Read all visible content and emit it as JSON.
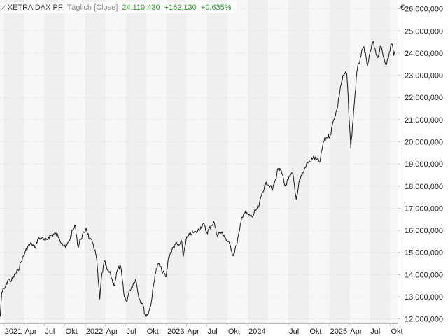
{
  "header": {
    "icon": "line-chart-icon",
    "ticker": "XETRA DAX PF",
    "interval": "Täglich [Close]",
    "last": "24.110,430",
    "change": "+152,130",
    "change_pct": "+0,635%"
  },
  "colors": {
    "line": "#1a1a1a",
    "band_dark": "#efefef",
    "band_light": "#f7f7f7",
    "grid": "#dcdcdc",
    "axis": "#bdbdbd",
    "positive": "#2c9a2c"
  },
  "chart_data": {
    "type": "line",
    "currency_label": "€",
    "ylim": [
      11800000,
      26400000
    ],
    "xlim": [
      "2020-12-14",
      "2025-11-03"
    ],
    "grid": true,
    "y_ticks": [
      {
        "value": 12000000,
        "label": "12.000,000"
      },
      {
        "value": 13000000,
        "label": "13.000,000"
      },
      {
        "value": 14000000,
        "label": "14.000,000"
      },
      {
        "value": 15000000,
        "label": "15.000,000"
      },
      {
        "value": 16000000,
        "label": "16.000,000"
      },
      {
        "value": 17000000,
        "label": "17.000,000"
      },
      {
        "value": 18000000,
        "label": "18.000,000"
      },
      {
        "value": 19000000,
        "label": "19.000,000"
      },
      {
        "value": 20000000,
        "label": "20.000,000"
      },
      {
        "value": 21000000,
        "label": "21.000,000"
      },
      {
        "value": 22000000,
        "label": "22.000,000"
      },
      {
        "value": 23000000,
        "label": "23.000,000"
      },
      {
        "value": 24000000,
        "label": "24.000,000"
      },
      {
        "value": 25000000,
        "label": "25.000,000"
      },
      {
        "value": 26000000,
        "label": "26.000,000"
      }
    ],
    "x_ticks": [
      {
        "date": "2021-01-01",
        "label": "2021"
      },
      {
        "date": "2021-04-01",
        "label": "Apr"
      },
      {
        "date": "2021-07-01",
        "label": "Jul"
      },
      {
        "date": "2021-10-01",
        "label": "Okt"
      },
      {
        "date": "2022-01-01",
        "label": "2022"
      },
      {
        "date": "2022-04-01",
        "label": "Apr"
      },
      {
        "date": "2022-07-01",
        "label": "Jul"
      },
      {
        "date": "2022-10-01",
        "label": "Okt"
      },
      {
        "date": "2023-01-01",
        "label": "2023"
      },
      {
        "date": "2023-04-01",
        "label": "Apr"
      },
      {
        "date": "2023-07-01",
        "label": "Jul"
      },
      {
        "date": "2023-10-01",
        "label": "Okt"
      },
      {
        "date": "2024-01-01",
        "label": "2024"
      },
      {
        "date": "2024-07-01",
        "label": "Jul"
      },
      {
        "date": "2024-10-01",
        "label": "Okt"
      },
      {
        "date": "2025-01-01",
        "label": "2025"
      },
      {
        "date": "2025-04-01",
        "label": "Apr"
      },
      {
        "date": "2025-07-01",
        "label": "Jul"
      },
      {
        "date": "2025-10-01",
        "label": "Okt"
      }
    ],
    "series": [
      {
        "points": [
          [
            "2020-12-15",
            12100000
          ],
          [
            "2020-12-22",
            13200000
          ],
          [
            "2021-01-05",
            13400000
          ],
          [
            "2021-01-20",
            13800000
          ],
          [
            "2021-02-01",
            13700000
          ],
          [
            "2021-02-20",
            14000000
          ],
          [
            "2021-03-05",
            14200000
          ],
          [
            "2021-03-20",
            14600000
          ],
          [
            "2021-04-05",
            15000000
          ],
          [
            "2021-04-20",
            15300000
          ],
          [
            "2021-05-05",
            15400000
          ],
          [
            "2021-05-20",
            15200000
          ],
          [
            "2021-06-01",
            15600000
          ],
          [
            "2021-06-20",
            15650000
          ],
          [
            "2021-07-05",
            15500000
          ],
          [
            "2021-07-20",
            15700000
          ],
          [
            "2021-08-05",
            15800000
          ],
          [
            "2021-08-20",
            15850000
          ],
          [
            "2021-09-05",
            15700000
          ],
          [
            "2021-09-20",
            15400000
          ],
          [
            "2021-10-05",
            15200000
          ],
          [
            "2021-10-20",
            15500000
          ],
          [
            "2021-11-05",
            16000000
          ],
          [
            "2021-11-18",
            16200000
          ],
          [
            "2021-11-30",
            15200000
          ],
          [
            "2021-12-10",
            15600000
          ],
          [
            "2021-12-28",
            15900000
          ],
          [
            "2022-01-05",
            16100000
          ],
          [
            "2022-01-20",
            15600000
          ],
          [
            "2022-02-05",
            15400000
          ],
          [
            "2022-02-20",
            14800000
          ],
          [
            "2022-03-07",
            12900000
          ],
          [
            "2022-03-15",
            13900000
          ],
          [
            "2022-03-28",
            14600000
          ],
          [
            "2022-04-10",
            14200000
          ],
          [
            "2022-04-25",
            14000000
          ],
          [
            "2022-05-10",
            13500000
          ],
          [
            "2022-05-25",
            14200000
          ],
          [
            "2022-06-08",
            14400000
          ],
          [
            "2022-06-25",
            13000000
          ],
          [
            "2022-07-05",
            12800000
          ],
          [
            "2022-07-20",
            13300000
          ],
          [
            "2022-08-05",
            13600000
          ],
          [
            "2022-08-15",
            13800000
          ],
          [
            "2022-09-01",
            12900000
          ],
          [
            "2022-09-15",
            12700000
          ],
          [
            "2022-09-29",
            12100000
          ],
          [
            "2022-10-13",
            12300000
          ],
          [
            "2022-10-25",
            12800000
          ],
          [
            "2022-11-10",
            14000000
          ],
          [
            "2022-11-25",
            14500000
          ],
          [
            "2022-12-10",
            14200000
          ],
          [
            "2022-12-30",
            13900000
          ],
          [
            "2023-01-10",
            14800000
          ],
          [
            "2023-01-25",
            15100000
          ],
          [
            "2023-02-10",
            15400000
          ],
          [
            "2023-02-25",
            15300000
          ],
          [
            "2023-03-10",
            15500000
          ],
          [
            "2023-03-16",
            14800000
          ],
          [
            "2023-03-30",
            15600000
          ],
          [
            "2023-04-15",
            15800000
          ],
          [
            "2023-04-30",
            15900000
          ],
          [
            "2023-05-15",
            15900000
          ],
          [
            "2023-06-15",
            16300000
          ],
          [
            "2023-07-01",
            15900000
          ],
          [
            "2023-07-20",
            16200000
          ],
          [
            "2023-08-01",
            16400000
          ],
          [
            "2023-08-15",
            15800000
          ],
          [
            "2023-09-01",
            15900000
          ],
          [
            "2023-09-15",
            15800000
          ],
          [
            "2023-09-30",
            15500000
          ],
          [
            "2023-10-15",
            15300000
          ],
          [
            "2023-10-27",
            14850000
          ],
          [
            "2023-11-10",
            15300000
          ],
          [
            "2023-11-25",
            16000000
          ],
          [
            "2023-12-05",
            16600000
          ],
          [
            "2023-12-15",
            16800000
          ],
          [
            "2024-01-05",
            16700000
          ],
          [
            "2024-01-20",
            16600000
          ],
          [
            "2024-02-05",
            16900000
          ],
          [
            "2024-02-20",
            17100000
          ],
          [
            "2024-03-05",
            17700000
          ],
          [
            "2024-03-25",
            18200000
          ],
          [
            "2024-04-10",
            18000000
          ],
          [
            "2024-04-19",
            17800000
          ],
          [
            "2024-05-05",
            18300000
          ],
          [
            "2024-05-15",
            18800000
          ],
          [
            "2024-06-01",
            18600000
          ],
          [
            "2024-06-15",
            18000000
          ],
          [
            "2024-07-01",
            18300000
          ],
          [
            "2024-07-20",
            18600000
          ],
          [
            "2024-08-05",
            17400000
          ],
          [
            "2024-08-20",
            18300000
          ],
          [
            "2024-09-05",
            18600000
          ],
          [
            "2024-09-20",
            19000000
          ],
          [
            "2024-10-05",
            19100000
          ],
          [
            "2024-10-20",
            19300000
          ],
          [
            "2024-11-05",
            19200000
          ],
          [
            "2024-11-20",
            19100000
          ],
          [
            "2024-12-05",
            20000000
          ],
          [
            "2024-12-20",
            20200000
          ],
          [
            "2025-01-05",
            20300000
          ],
          [
            "2025-01-20",
            21000000
          ],
          [
            "2025-02-05",
            21500000
          ],
          [
            "2025-02-20",
            22500000
          ],
          [
            "2025-03-05",
            23000000
          ],
          [
            "2025-03-20",
            23100000
          ],
          [
            "2025-04-07",
            19700000
          ],
          [
            "2025-04-20",
            21400000
          ],
          [
            "2025-05-05",
            23200000
          ],
          [
            "2025-05-20",
            23800000
          ],
          [
            "2025-06-05",
            24300000
          ],
          [
            "2025-06-20",
            23400000
          ],
          [
            "2025-07-05",
            24100000
          ],
          [
            "2025-07-15",
            24500000
          ],
          [
            "2025-07-25",
            24200000
          ],
          [
            "2025-08-05",
            23800000
          ],
          [
            "2025-08-20",
            24300000
          ],
          [
            "2025-09-05",
            23700000
          ],
          [
            "2025-09-15",
            23500000
          ],
          [
            "2025-09-25",
            23900000
          ],
          [
            "2025-10-05",
            24400000
          ],
          [
            "2025-10-10",
            24400000
          ],
          [
            "2025-10-17",
            23900000
          ],
          [
            "2025-10-24",
            24110430
          ]
        ]
      }
    ]
  }
}
